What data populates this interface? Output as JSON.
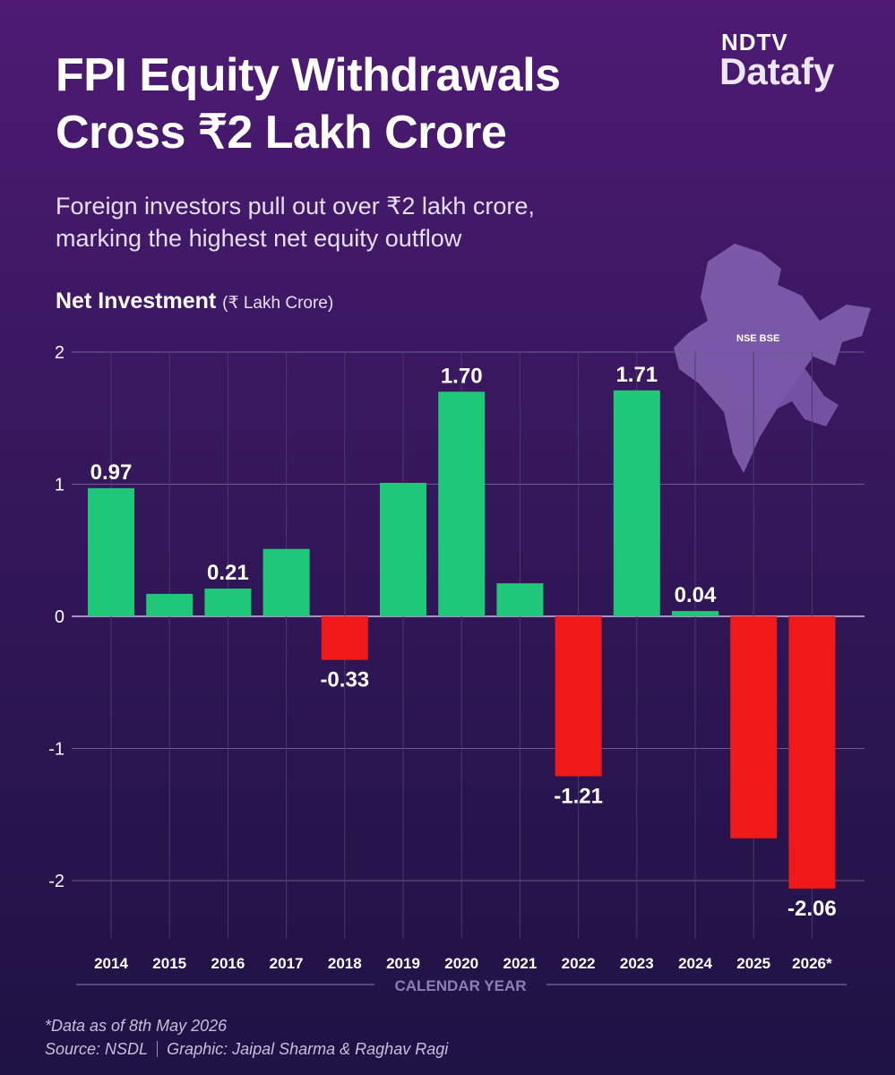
{
  "title_line1": "FPI Equity Withdrawals",
  "title_line2": "Cross ₹2 Lakh Crore",
  "subtitle_line1": "Foreign investors pull out over ₹2 lakh crore,",
  "subtitle_line2": "marking the highest net equity outflow",
  "brand": {
    "top": "NDTV",
    "bottom": "Datafy"
  },
  "map_label": "NSE BSE",
  "chart_data": {
    "type": "bar",
    "ylabel": "Net Investment",
    "ylabel_unit": "(₹ Lakh Crore)",
    "xlabel": "CALENDAR YEAR",
    "categories": [
      "2014",
      "2015",
      "2016",
      "2017",
      "2018",
      "2019",
      "2020",
      "2021",
      "2022",
      "2023",
      "2024",
      "2025",
      "2026*"
    ],
    "values": [
      0.97,
      0.17,
      0.21,
      0.51,
      -0.33,
      1.01,
      1.7,
      0.25,
      -1.21,
      1.71,
      0.04,
      -1.68,
      -2.06
    ],
    "data_labels": [
      "0.97",
      null,
      "0.21",
      null,
      "-0.33",
      null,
      "1.70",
      null,
      "-1.21",
      "1.71",
      "0.04",
      null,
      "-2.06"
    ],
    "ylim": [
      -2.4,
      2
    ],
    "yticks": [
      2,
      1,
      0,
      -1,
      -2
    ],
    "grid": true,
    "colors": {
      "positive": "#1fc878",
      "negative": "#f01818"
    }
  },
  "footnote": {
    "data_note": "*Data as of 8th May 2026",
    "source": "Source: NSDL",
    "credit": "Graphic: Jaipal Sharma & Raghav Ragi"
  }
}
